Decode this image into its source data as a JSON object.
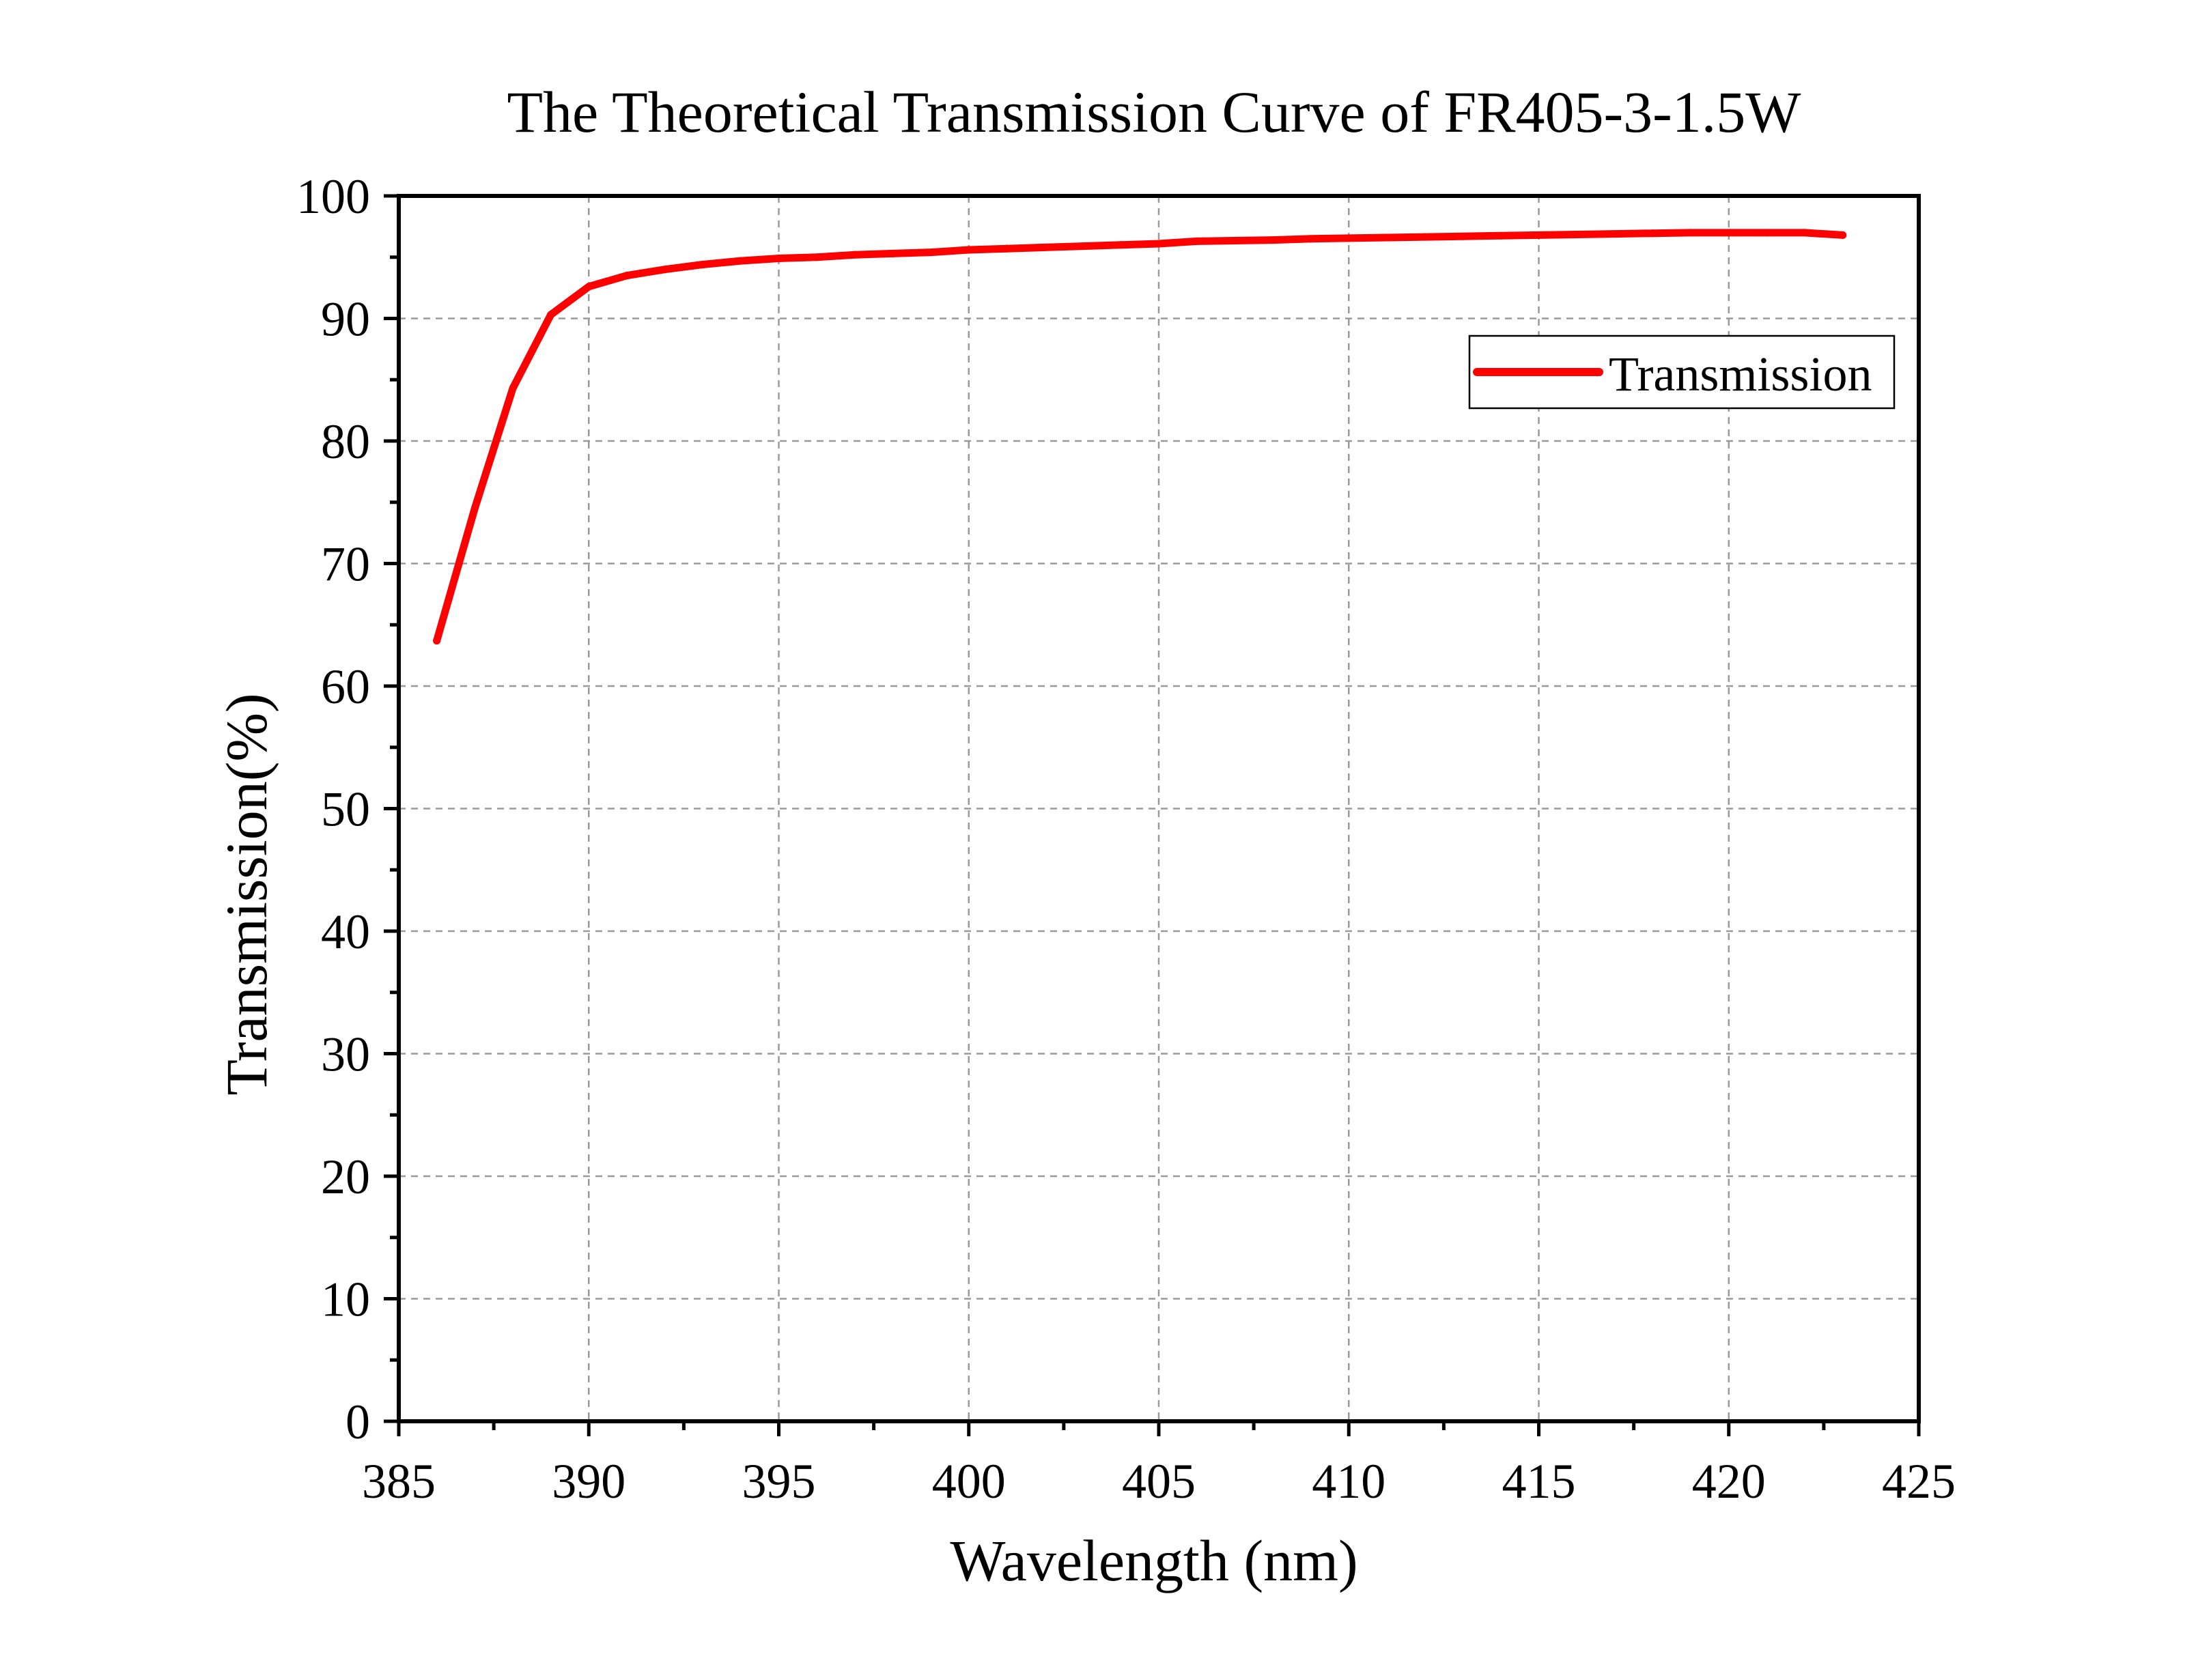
{
  "chart_data": {
    "type": "line",
    "title": "The Theoretical Transmission Curve of FR405-3-1.5W",
    "xlabel": "Wavelength (nm)",
    "ylabel": "Transmission(%)",
    "xlim": [
      385,
      425
    ],
    "ylim": [
      0,
      100
    ],
    "xticks": [
      385,
      390,
      395,
      400,
      405,
      410,
      415,
      420,
      425
    ],
    "yticks": [
      0,
      10,
      20,
      30,
      40,
      50,
      60,
      70,
      80,
      90,
      100
    ],
    "grid": true,
    "legend_position": "top-right",
    "series": [
      {
        "name": "Transmission",
        "color": "#ff0000",
        "x": [
          386,
          387,
          388,
          389,
          390,
          391,
          392,
          393,
          394,
          395,
          396,
          397,
          398,
          399,
          400,
          401,
          402,
          403,
          404,
          405,
          406,
          407,
          408,
          409,
          410,
          411,
          412,
          413,
          414,
          415,
          416,
          417,
          418,
          419,
          420,
          421,
          422,
          423
        ],
        "values": [
          63.7,
          74.5,
          84.3,
          90.3,
          92.6,
          93.5,
          94.0,
          94.4,
          94.7,
          94.9,
          95.0,
          95.2,
          95.3,
          95.4,
          95.6,
          95.7,
          95.8,
          95.9,
          96.0,
          96.1,
          96.3,
          96.35,
          96.4,
          96.5,
          96.55,
          96.6,
          96.65,
          96.7,
          96.75,
          96.8,
          96.85,
          96.9,
          96.95,
          97.0,
          97.0,
          97.0,
          97.0,
          96.8
        ]
      }
    ]
  }
}
